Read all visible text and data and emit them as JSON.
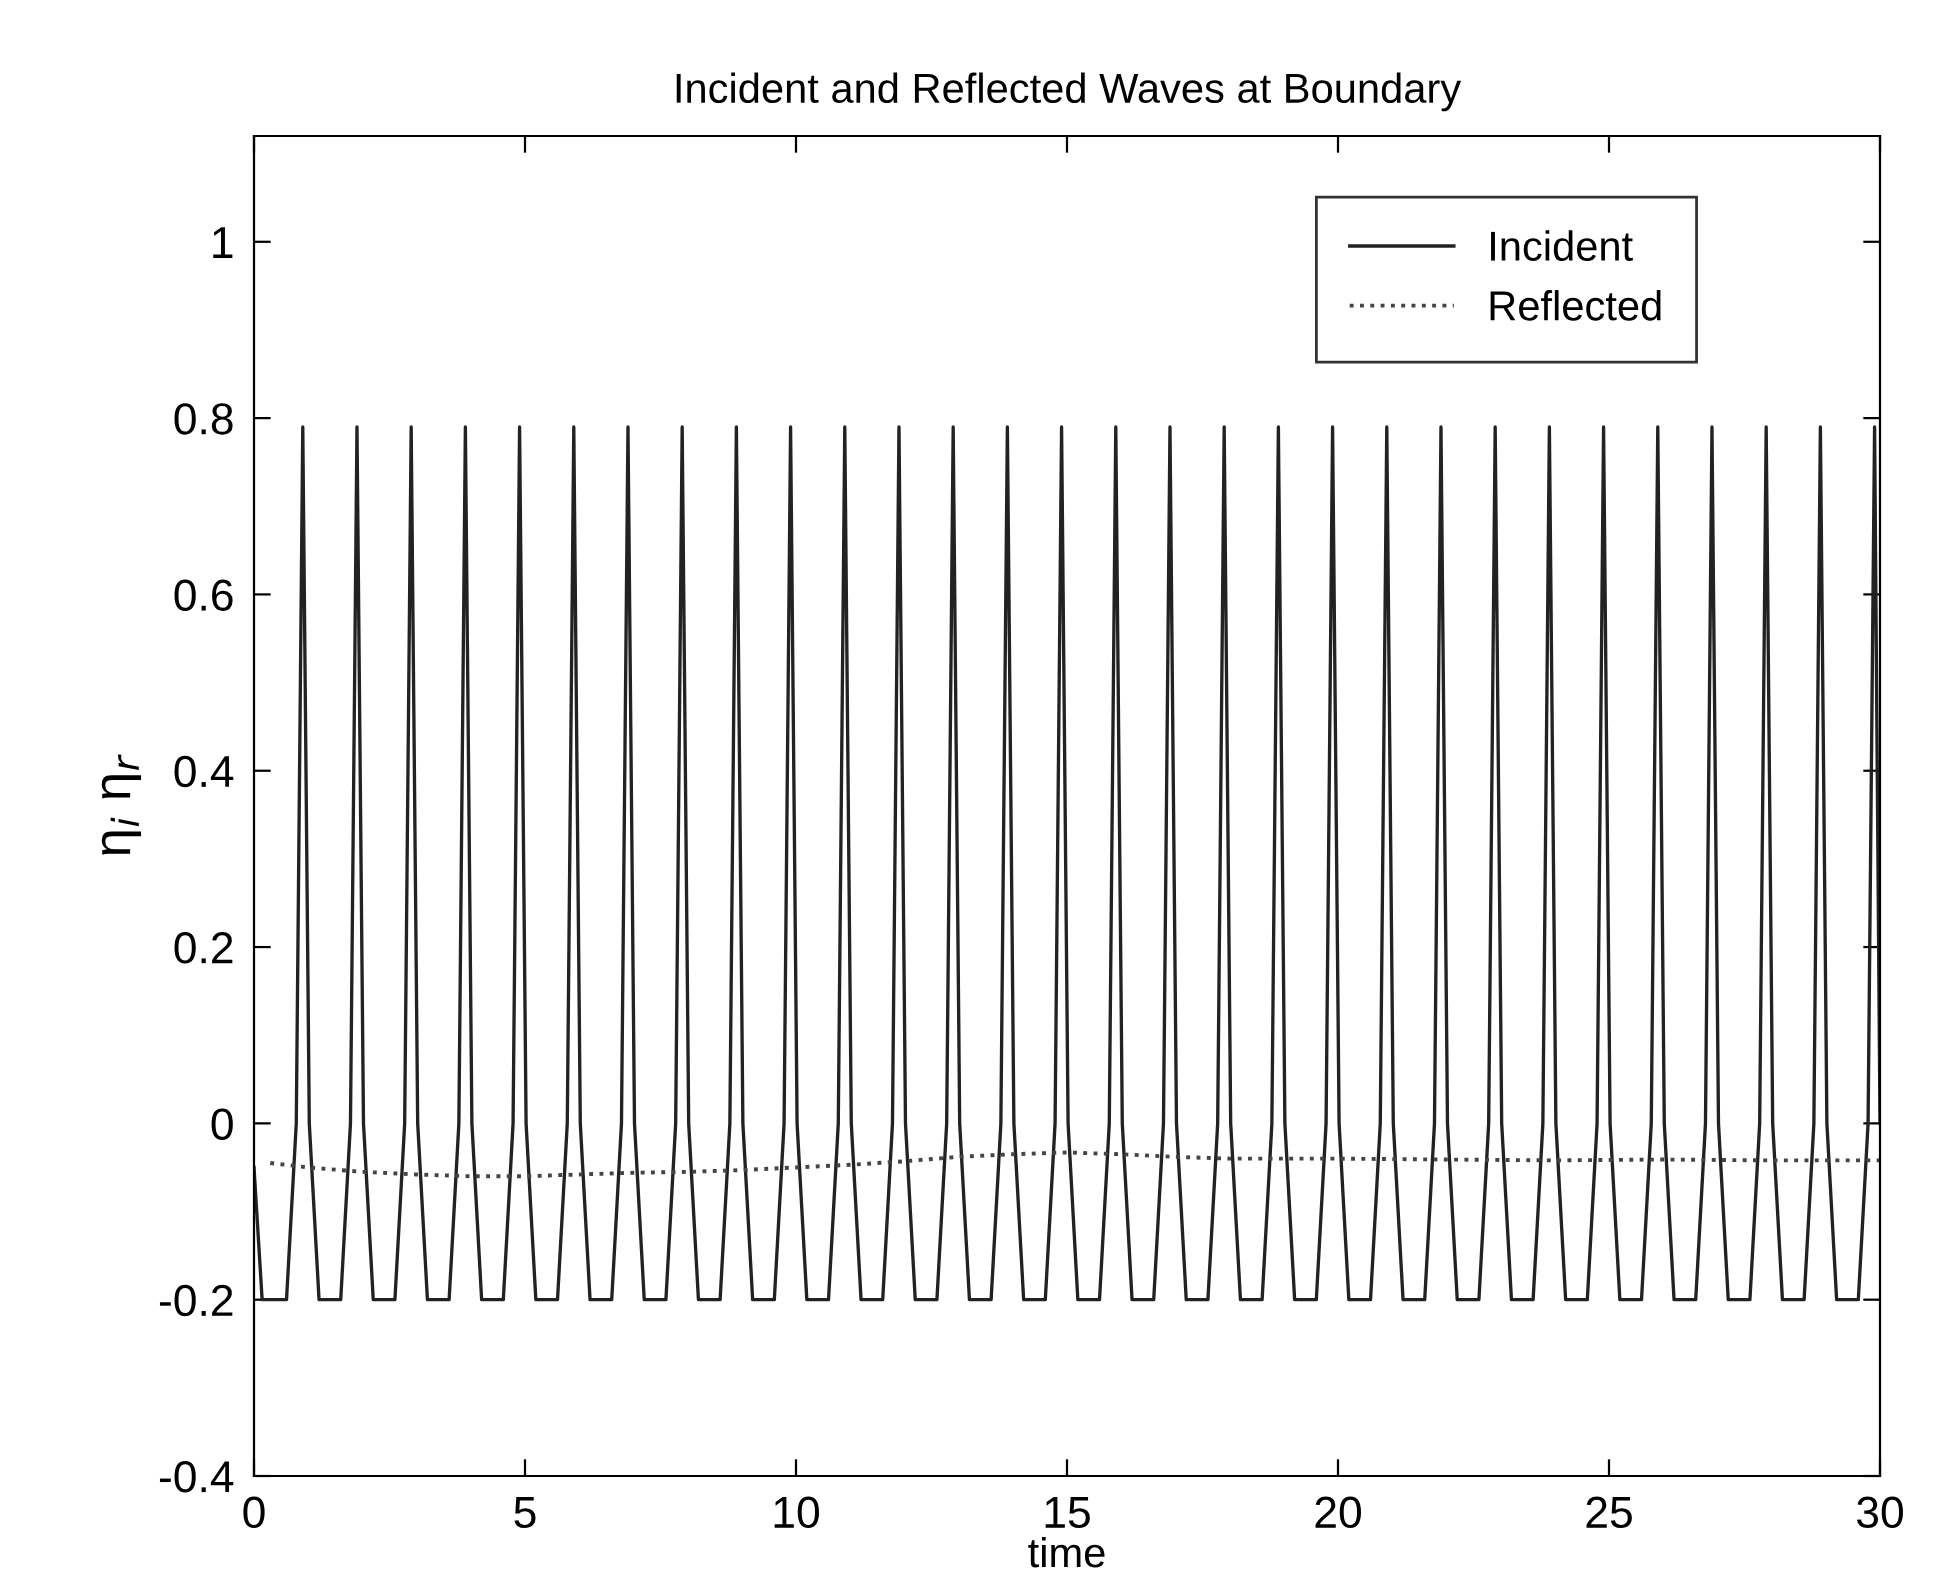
{
  "chart_data": {
    "type": "line",
    "title": "Incident and Reflected Waves at Boundary",
    "xlabel": "time",
    "ylabel": "η$_{i}$ η$_{r}$",
    "xlim": [
      0,
      30
    ],
    "ylim": [
      -0.4,
      1.12
    ],
    "xticks": [
      0,
      5,
      10,
      15,
      20,
      25,
      30
    ],
    "yticks": [
      -0.4,
      -0.2,
      0,
      0.2,
      0.4,
      0.6,
      0.8,
      1
    ],
    "grid": false,
    "legend": "top right",
    "series": [
      {
        "name": "Incident",
        "color": "#222222",
        "line_style": "solid",
        "x": [
          0,
          0.15,
          0.6,
          0.78,
          0.9,
          1.02,
          1.2,
          1.6,
          1.78,
          1.9,
          2.02,
          2.2,
          2.6,
          2.78,
          2.9,
          3.02,
          3.2,
          3.6,
          3.78,
          3.9,
          4.02,
          4.2,
          4.6,
          4.78,
          4.9,
          5.02,
          5.2,
          5.6,
          5.78,
          5.9,
          6.02,
          6.2,
          6.6,
          6.78,
          6.9,
          7.02,
          7.2,
          7.6,
          7.78,
          7.9,
          8.02,
          8.2,
          8.6,
          8.78,
          8.9,
          9.02,
          9.2,
          9.6,
          9.78,
          9.9,
          10.02,
          10.2,
          10.6,
          10.78,
          10.9,
          11.02,
          11.2,
          11.6,
          11.78,
          11.9,
          12.02,
          12.2,
          12.6,
          12.78,
          12.9,
          13.02,
          13.2,
          13.6,
          13.78,
          13.9,
          14.02,
          14.2,
          14.6,
          14.78,
          14.9,
          15.02,
          15.2,
          15.6,
          15.78,
          15.9,
          16.02,
          16.2,
          16.6,
          16.78,
          16.9,
          17.02,
          17.2,
          17.6,
          17.78,
          17.9,
          18.02,
          18.2,
          18.6,
          18.78,
          18.9,
          19.02,
          19.2,
          19.6,
          19.78,
          19.9,
          20.02,
          20.2,
          20.6,
          20.78,
          20.9,
          21.02,
          21.2,
          21.6,
          21.78,
          21.9,
          22.02,
          22.2,
          22.6,
          22.78,
          22.9,
          23.02,
          23.2,
          23.6,
          23.78,
          23.9,
          24.02,
          24.2,
          24.6,
          24.78,
          24.9,
          25.02,
          25.2,
          25.6,
          25.78,
          25.9,
          26.02,
          26.2,
          26.6,
          26.78,
          26.9,
          27.02,
          27.2,
          27.6,
          27.78,
          27.9,
          28.02,
          28.2,
          28.6,
          28.78,
          28.9,
          29.02,
          29.2,
          29.6,
          29.78,
          29.9,
          30
        ],
        "values": [
          -0.05,
          -0.2,
          -0.2,
          0,
          0.79,
          0,
          -0.2,
          -0.2,
          0,
          0.79,
          0,
          -0.2,
          -0.2,
          0,
          0.79,
          0,
          -0.2,
          -0.2,
          0,
          0.79,
          0,
          -0.2,
          -0.2,
          0,
          0.79,
          0,
          -0.2,
          -0.2,
          0,
          0.79,
          0,
          -0.2,
          -0.2,
          0,
          0.79,
          0,
          -0.2,
          -0.2,
          0,
          0.79,
          0,
          -0.2,
          -0.2,
          0,
          0.79,
          0,
          -0.2,
          -0.2,
          0,
          0.79,
          0,
          -0.2,
          -0.2,
          0,
          0.79,
          0,
          -0.2,
          -0.2,
          0,
          0.79,
          0,
          -0.2,
          -0.2,
          0,
          0.79,
          0,
          -0.2,
          -0.2,
          0,
          0.79,
          0,
          -0.2,
          -0.2,
          0,
          0.79,
          0,
          -0.2,
          -0.2,
          0,
          0.79,
          0,
          -0.2,
          -0.2,
          0,
          0.79,
          0,
          -0.2,
          -0.2,
          0,
          0.79,
          0,
          -0.2,
          -0.2,
          0,
          0.79,
          0,
          -0.2,
          -0.2,
          0,
          0.79,
          0,
          -0.2,
          -0.2,
          0,
          0.79,
          0,
          -0.2,
          -0.2,
          0,
          0.79,
          0,
          -0.2,
          -0.2,
          0,
          0.79,
          0,
          -0.2,
          -0.2,
          0,
          0.79,
          0,
          -0.2,
          -0.2,
          0,
          0.79,
          0,
          -0.2,
          -0.2,
          0,
          0.79,
          0,
          -0.2,
          -0.2,
          0,
          0.79,
          0,
          -0.2,
          -0.2,
          0,
          0.79,
          0,
          -0.2,
          -0.2,
          0,
          0.79,
          0,
          -0.2,
          -0.2,
          0,
          0.79,
          0
        ]
      },
      {
        "name": "Reflected",
        "color": "#444444",
        "line_style": "dotted",
        "x": [
          0.3,
          1,
          2,
          3,
          4,
          5,
          6,
          7,
          8,
          9,
          10,
          11,
          12,
          13,
          14,
          15,
          16,
          17,
          18,
          20,
          22,
          24,
          26,
          28,
          30
        ],
        "values": [
          -0.045,
          -0.05,
          -0.055,
          -0.058,
          -0.06,
          -0.06,
          -0.058,
          -0.056,
          -0.055,
          -0.053,
          -0.05,
          -0.047,
          -0.043,
          -0.038,
          -0.035,
          -0.033,
          -0.035,
          -0.038,
          -0.04,
          -0.04,
          -0.041,
          -0.042,
          -0.041,
          -0.042,
          -0.042
        ]
      }
    ]
  }
}
